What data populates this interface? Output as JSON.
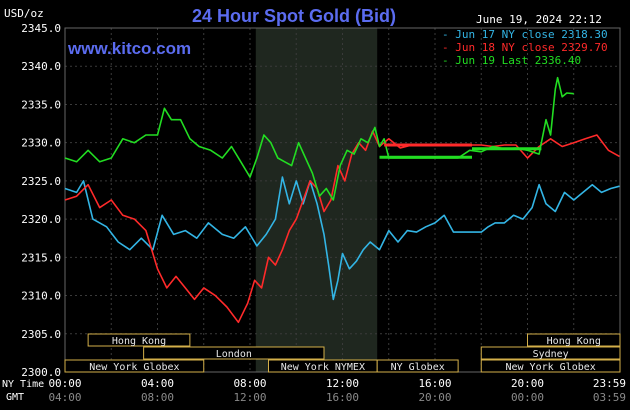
{
  "chart_data": {
    "type": "line",
    "title": "24 Hour Spot Gold (Bid)",
    "unit_label": "USD/oz",
    "watermark": "www.kitco.com",
    "date_label": "June 19, 2024 22:12",
    "ylim": [
      2300,
      2345
    ],
    "yticks": [
      "2345.0",
      "2340.0",
      "2335.0",
      "2330.0",
      "2325.0",
      "2320.0",
      "2315.0",
      "2310.0",
      "2305.0",
      "2300.0"
    ],
    "ytick_values": [
      2345,
      2340,
      2335,
      2330,
      2325,
      2320,
      2315,
      2310,
      2305,
      2300
    ],
    "xlim": [
      0,
      24
    ],
    "ny_time_label": "NY Time",
    "gmt_label": "GMT",
    "ny_ticks": [
      "00:00",
      "04:00",
      "08:00",
      "12:00",
      "16:00",
      "20:00",
      "23:59"
    ],
    "ny_tick_values": [
      0,
      4,
      8,
      12,
      16,
      20,
      23.983
    ],
    "gmt_ticks": [
      "04:00",
      "08:00",
      "12:00",
      "16:00",
      "20:00",
      "00:00",
      "03:59"
    ],
    "shaded_range_hours": [
      8.25,
      13.5
    ],
    "legend": [
      {
        "text": "Jun 17 NY close 2318.30",
        "color": "#33b5e5"
      },
      {
        "text": "Jun 18 NY close 2329.70",
        "color": "#ff2a2a"
      },
      {
        "text": "Jun 19 Last 2336.40",
        "color": "#22dd22"
      }
    ],
    "sessions": [
      {
        "name": "Hong Kong",
        "row": 0,
        "start": 1.0,
        "end": 5.4
      },
      {
        "name": "London",
        "row": 1,
        "start": 3.4,
        "end": 11.2
      },
      {
        "name": "New York Globex",
        "row": 2,
        "start": 0.0,
        "end": 6.0
      },
      {
        "name": "New York NYMEX",
        "row": 2,
        "start": 8.8,
        "end": 13.5
      },
      {
        "name": "NY Globex",
        "row": 2,
        "start": 13.5,
        "end": 17.0
      },
      {
        "name": "Hong Kong",
        "row": 0,
        "start": 20.0,
        "end": 24.0
      },
      {
        "name": "Sydney",
        "row": 1,
        "start": 18.0,
        "end": 24.0
      },
      {
        "name": "New York Globex",
        "row": 2,
        "start": 18.0,
        "end": 24.0
      }
    ],
    "series": [
      {
        "name": "Jun 17",
        "color": "#33b5e5",
        "x": [
          0,
          0.5,
          0.8,
          1.2,
          1.8,
          2.3,
          2.8,
          3.3,
          3.8,
          4.2,
          4.7,
          5.2,
          5.7,
          6.2,
          6.8,
          7.3,
          7.8,
          8.3,
          8.7,
          9.1,
          9.4,
          9.7,
          10.0,
          10.3,
          10.6,
          10.9,
          11.2,
          11.4,
          11.6,
          11.8,
          12.0,
          12.3,
          12.6,
          12.9,
          13.2,
          13.6,
          14.0,
          14.4,
          14.8,
          15.2,
          15.6,
          16.0,
          16.4,
          16.8,
          17.2,
          17.6,
          18.0,
          18.3,
          18.6,
          19.0,
          19.4,
          19.8,
          20.2,
          20.5,
          20.8,
          21.2,
          21.6,
          22.0,
          22.4,
          22.8,
          23.2,
          23.6,
          23.98
        ],
        "values": [
          2324,
          2323.5,
          2325,
          2320,
          2319,
          2317,
          2316,
          2317.5,
          2316,
          2320.5,
          2318,
          2318.5,
          2317.5,
          2319.5,
          2318,
          2317.5,
          2319,
          2316.5,
          2318,
          2320,
          2325.5,
          2322,
          2325,
          2322,
          2325,
          2322,
          2318,
          2314,
          2309.5,
          2312,
          2315.5,
          2313.5,
          2314.5,
          2316,
          2317,
          2316,
          2318.5,
          2317,
          2318.5,
          2318.3,
          2319,
          2319.5,
          2320.5,
          2318.3,
          2318.3,
          2318.3,
          2318.3,
          2319,
          2319.5,
          2319.5,
          2320.5,
          2320,
          2321.5,
          2324.5,
          2322,
          2321,
          2323.5,
          2322.5,
          2323.5,
          2324.5,
          2323.5,
          2324,
          2324.3
        ]
      },
      {
        "name": "Jun 18",
        "color": "#ff2a2a",
        "x": [
          0,
          0.5,
          1.0,
          1.5,
          2.0,
          2.5,
          3.0,
          3.5,
          4.0,
          4.4,
          4.8,
          5.2,
          5.6,
          6.0,
          6.5,
          7.0,
          7.5,
          7.9,
          8.2,
          8.5,
          8.8,
          9.1,
          9.4,
          9.7,
          10.0,
          10.3,
          10.6,
          10.9,
          11.2,
          11.5,
          11.8,
          12.1,
          12.4,
          12.7,
          13.0,
          13.3,
          13.6,
          14.0,
          14.5,
          15.0,
          15.5,
          16.0,
          16.5,
          17.0,
          17.5,
          18.0,
          18.5,
          19.0,
          19.5,
          20.0,
          20.5,
          21.0,
          21.5,
          22.0,
          22.5,
          23.0,
          23.5,
          23.98
        ],
        "values": [
          2322.5,
          2323,
          2324.5,
          2321.5,
          2322.5,
          2320.5,
          2320,
          2318.5,
          2313.5,
          2311,
          2312.5,
          2311,
          2309.5,
          2311,
          2310,
          2308.5,
          2306.5,
          2309,
          2312,
          2311,
          2315,
          2314,
          2316,
          2318.5,
          2320,
          2322.5,
          2325,
          2324,
          2321,
          2322.5,
          2327,
          2325,
          2328.5,
          2330,
          2329,
          2331.5,
          2329.5,
          2330.5,
          2329.3,
          2329.7,
          2329.7,
          2329.7,
          2329.7,
          2329.7,
          2329.7,
          2329.7,
          2329.5,
          2329.7,
          2329.7,
          2328,
          2329.5,
          2330.5,
          2329.5,
          2330,
          2330.5,
          2331,
          2329,
          2328.2
        ]
      },
      {
        "name": "Jun 19",
        "color": "#22dd22",
        "x": [
          0,
          0.5,
          1.0,
          1.5,
          2.0,
          2.5,
          3.0,
          3.5,
          4.0,
          4.3,
          4.6,
          5.0,
          5.4,
          5.8,
          6.3,
          6.8,
          7.2,
          7.6,
          8.0,
          8.3,
          8.6,
          8.9,
          9.2,
          9.5,
          9.8,
          10.1,
          10.4,
          10.7,
          11.0,
          11.3,
          11.6,
          11.9,
          12.2,
          12.5,
          12.8,
          13.1,
          13.4,
          13.6,
          13.8,
          14.0,
          14.5,
          15.0,
          15.5,
          16.0,
          16.5,
          17.0,
          17.5,
          18.0,
          18.5,
          19.0,
          19.5,
          20.0,
          20.5,
          20.8,
          21.0,
          21.2,
          21.3,
          21.5,
          21.7,
          22.0
        ],
        "values": [
          2328,
          2327.5,
          2329,
          2327.5,
          2328,
          2330.5,
          2330,
          2331,
          2331,
          2334.5,
          2333,
          2333,
          2330.5,
          2329.5,
          2329,
          2328,
          2329.5,
          2327.5,
          2325.5,
          2328,
          2331,
          2330,
          2328,
          2327.5,
          2327,
          2330,
          2328,
          2326,
          2323,
          2324,
          2322.5,
          2327,
          2329,
          2328.5,
          2330.5,
          2330,
          2332,
          2329.5,
          2330.5,
          2328,
          2328,
          2328,
          2328,
          2328,
          2328,
          2328,
          2329,
          2328.8,
          2329.5,
          2329.2,
          2329.3,
          2329,
          2328.5,
          2333,
          2331,
          2337,
          2338.5,
          2336,
          2336.5,
          2336.4
        ]
      }
    ],
    "flat_segments": [
      {
        "series": "Jun 19",
        "x": [
          13.6,
          17.6
        ],
        "value": 2328.1
      },
      {
        "series": "Jun 19",
        "x": [
          17.6,
          20.6
        ],
        "value": 2329.2
      },
      {
        "series": "Jun 18",
        "x": [
          13.8,
          17.6
        ],
        "value": 2329.7
      }
    ]
  }
}
